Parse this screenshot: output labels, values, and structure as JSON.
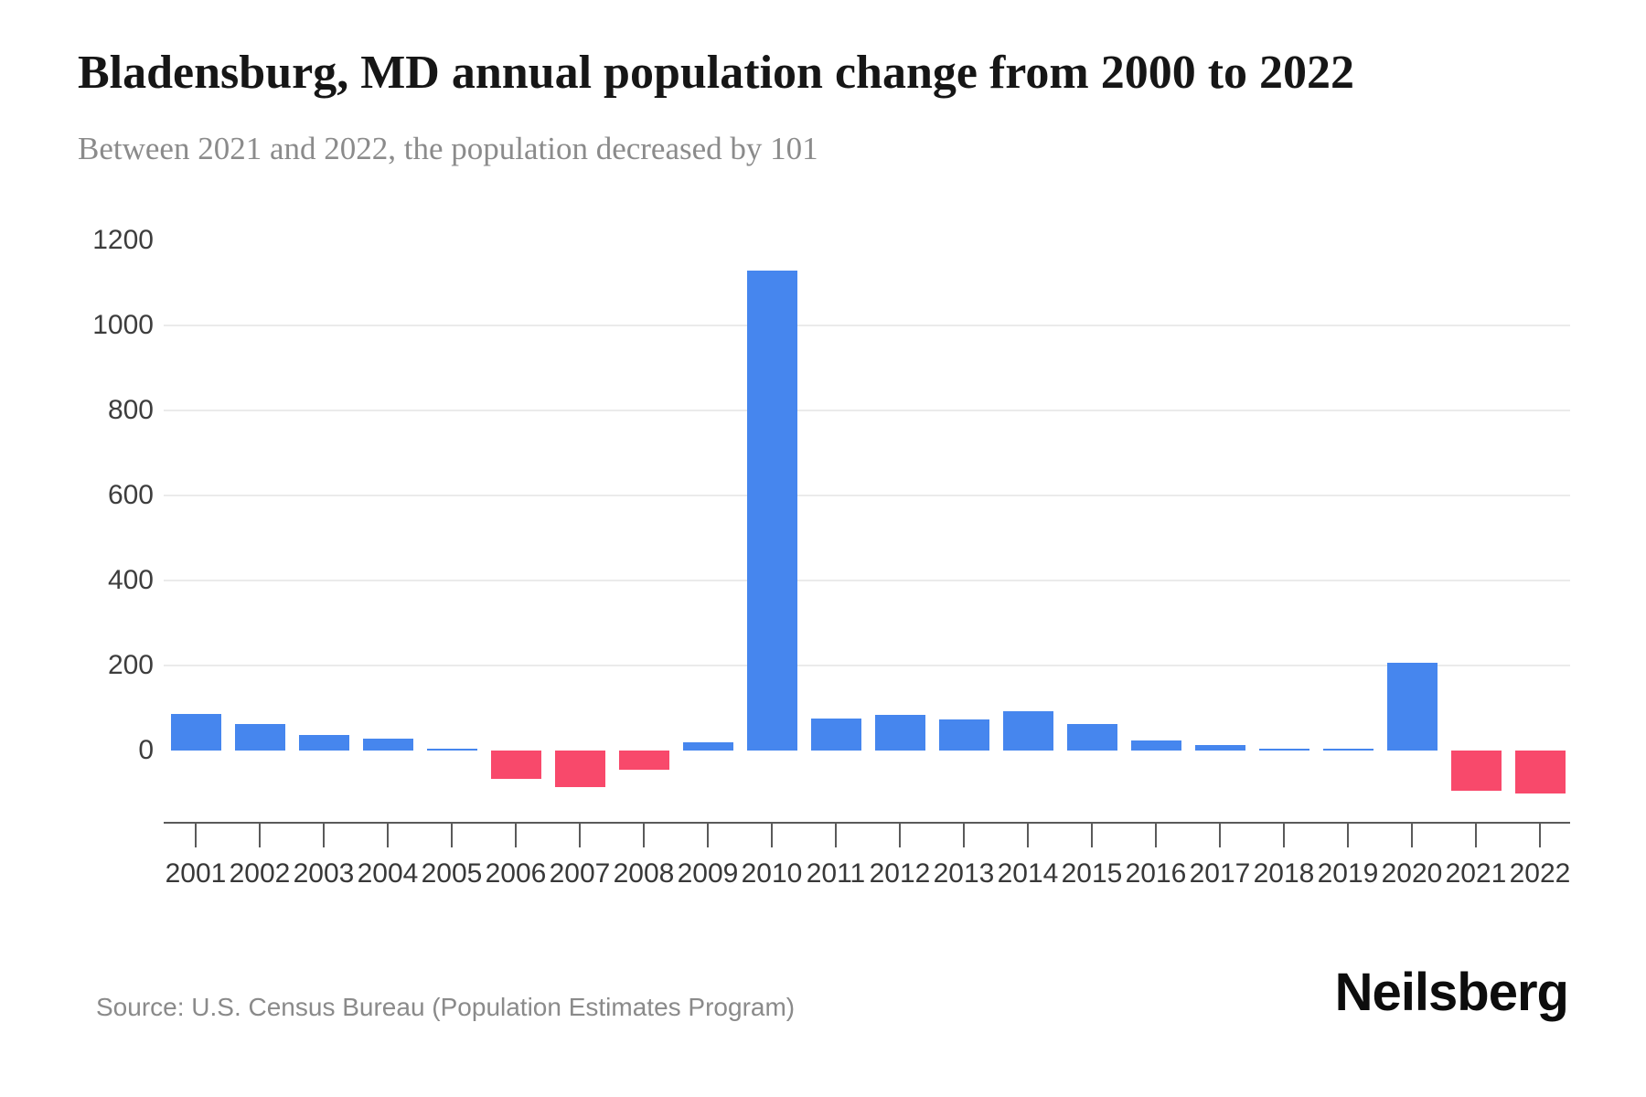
{
  "header": {
    "title": "Bladensburg, MD annual population change from 2000 to 2022",
    "subtitle": "Between 2021 and 2022, the population decreased by 101"
  },
  "footer": {
    "source_label": "Source: U.S. Census Bureau (Population Estimates Program)",
    "brand": "Neilsberg"
  },
  "chart_data": {
    "type": "bar",
    "title": "Bladensburg, MD annual population change from 2000 to 2022",
    "subtitle": "Between 2021 and 2022, the population decreased by 101",
    "categories": [
      "2001",
      "2002",
      "2003",
      "2004",
      "2005",
      "2006",
      "2007",
      "2008",
      "2009",
      "2010",
      "2011",
      "2012",
      "2013",
      "2014",
      "2015",
      "2016",
      "2017",
      "2018",
      "2019",
      "2020",
      "2021",
      "2022"
    ],
    "values": [
      85,
      62,
      37,
      27,
      3,
      -67,
      -86,
      -45,
      19,
      1130,
      76,
      84,
      73,
      93,
      63,
      24,
      13,
      4,
      2,
      206,
      -95,
      -101
    ],
    "xlabel": "",
    "ylabel": "",
    "yticks": [
      0,
      200,
      400,
      600,
      800,
      1000,
      1200
    ],
    "gridline_values": [
      200,
      400,
      600,
      800,
      1000
    ],
    "ylim": [
      -150,
      1200
    ],
    "grid": "horizontal-only",
    "legend": "none",
    "colors": {
      "positive": "#4686ee",
      "negative": "#f8496b"
    }
  }
}
